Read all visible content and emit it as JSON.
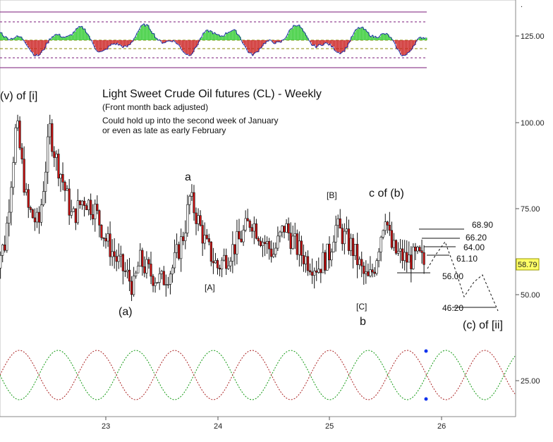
{
  "chart_data": {
    "type": "candlestick",
    "title": "Light Sweet Crude Oil futures (CL) - Weekly",
    "subtitle": "(Front month back adjusted)",
    "notes": [
      "Could hold up into the second week of January",
      "or even as late as early February"
    ],
    "x_ticks": [
      "23",
      "24",
      "25",
      "26"
    ],
    "y_ticks": [
      "125.00",
      "100.00",
      "75.00",
      "50.00",
      "25.00"
    ],
    "last_price": "58.79",
    "colors": {
      "up": "#ffffff",
      "down": "#cc1111",
      "osc_up": "#33cc33",
      "osc_down": "#cc2222",
      "last_price_bg": "#ffff66"
    },
    "wave_labels": [
      {
        "text": "(v) of [i]",
        "size": "lg"
      },
      {
        "text": "a",
        "size": "lg"
      },
      {
        "text": "[A]",
        "size": "sm"
      },
      {
        "text": "(a)",
        "size": "lg"
      },
      {
        "text": "[B]",
        "size": "sm"
      },
      {
        "text": "c of (b)",
        "size": "lg"
      },
      {
        "text": "[C]",
        "size": "sm"
      },
      {
        "text": "b",
        "size": "lg"
      },
      {
        "text": "(c) of [ii]",
        "size": "lg"
      }
    ],
    "targets": [
      {
        "text": "68.90",
        "value": 68.9
      },
      {
        "text": "66.20",
        "value": 66.2
      },
      {
        "text": "64.00",
        "value": 64.0
      },
      {
        "text": "61.10",
        "value": 61.1
      },
      {
        "text": "56.00",
        "value": 56.0
      },
      {
        "text": "46.20",
        "value": 46.2
      }
    ],
    "price_path": [
      [
        22.0,
        58
      ],
      [
        22.1,
        65
      ],
      [
        22.2,
        100
      ],
      [
        22.3,
        75
      ],
      [
        22.4,
        70
      ],
      [
        22.5,
        98
      ],
      [
        22.55,
        90
      ],
      [
        22.6,
        85
      ],
      [
        22.7,
        72
      ],
      [
        22.8,
        78
      ],
      [
        22.9,
        75
      ],
      [
        23.0,
        66
      ],
      [
        23.1,
        60
      ],
      [
        23.2,
        55
      ],
      [
        23.25,
        52
      ],
      [
        23.3,
        60
      ],
      [
        23.4,
        56
      ],
      [
        23.5,
        54
      ],
      [
        23.6,
        58
      ],
      [
        23.7,
        68
      ],
      [
        23.75,
        78
      ],
      [
        23.8,
        74
      ],
      [
        23.9,
        64
      ],
      [
        24.0,
        58
      ],
      [
        24.1,
        62
      ],
      [
        24.2,
        66
      ],
      [
        24.3,
        72
      ],
      [
        24.4,
        66
      ],
      [
        24.5,
        62
      ],
      [
        24.6,
        70
      ],
      [
        24.7,
        64
      ],
      [
        24.8,
        60
      ],
      [
        24.9,
        58
      ],
      [
        25.0,
        62
      ],
      [
        25.05,
        70
      ],
      [
        25.1,
        68
      ],
      [
        25.2,
        64
      ],
      [
        25.3,
        56
      ],
      [
        25.35,
        54
      ],
      [
        25.4,
        58
      ],
      [
        25.45,
        66
      ],
      [
        25.5,
        74
      ],
      [
        25.55,
        64
      ],
      [
        25.6,
        62
      ],
      [
        25.7,
        60
      ],
      [
        25.8,
        61
      ],
      [
        25.85,
        58.79
      ]
    ]
  }
}
